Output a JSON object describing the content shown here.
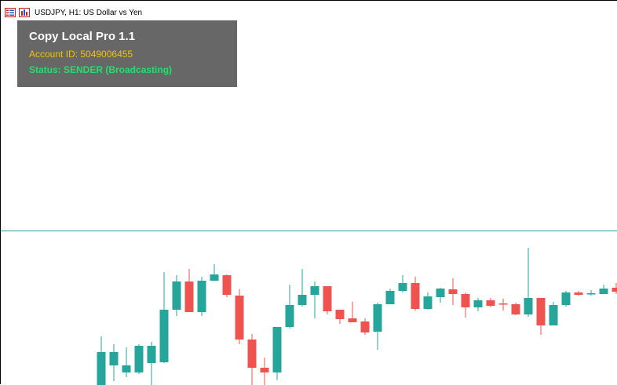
{
  "chart": {
    "symbol_title": "USDJPY, H1:  US Dollar vs Yen",
    "colors": {
      "bull": "#26a69a",
      "bear": "#ef5350",
      "price_line": "#27a399",
      "background": "#ffffff"
    },
    "icons": [
      "chart-list-icon",
      "chart-bars-icon"
    ]
  },
  "ea_panel": {
    "title": "Copy Local Pro 1.1",
    "account": "Account ID: 5049006455",
    "status": "Status: SENDER (Broadcasting)",
    "colors": {
      "background": "#676767",
      "title": "#ffffff",
      "account": "#f2c200",
      "status": "#1fe26b"
    }
  }
}
